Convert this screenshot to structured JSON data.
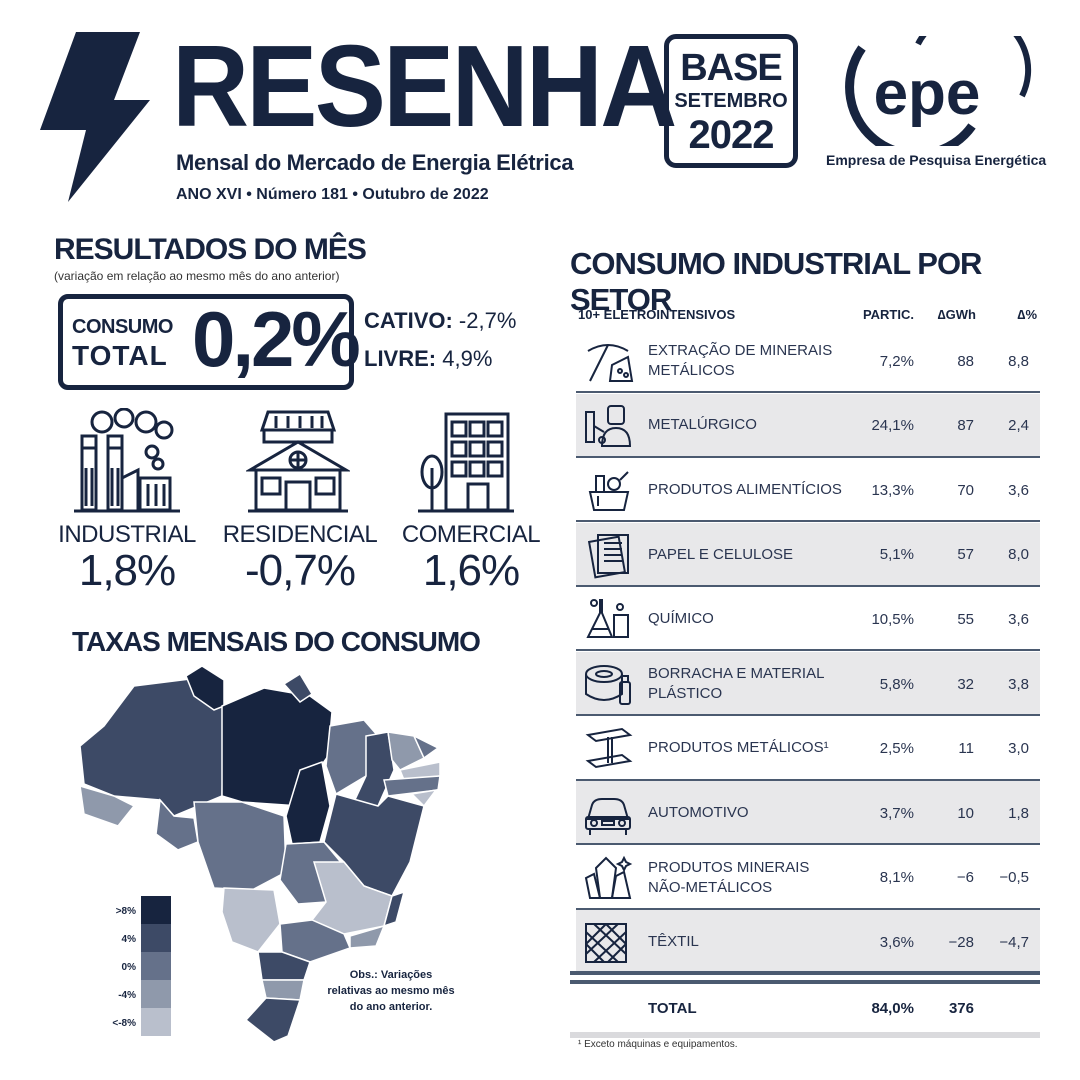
{
  "header": {
    "brand": "RESENHA",
    "subtitle": "Mensal do Mercado de Energia Elétrica",
    "issue": "ANO XVI • Número 181 • Outubro de 2022",
    "base_box": {
      "line1": "BASE",
      "line2": "SETEMBRO",
      "line3": "2022"
    },
    "epe_logo_text": "epe",
    "epe_caption": "Empresa de Pesquisa Energética"
  },
  "results": {
    "title": "RESULTADOS DO MÊS",
    "note": "(variação em relação ao mesmo mês do ano anterior)",
    "consumo_label_1": "CONSUMO",
    "consumo_label_2": "TOTAL",
    "consumo_value": "0,2%",
    "cativo_label": "CATIVO:",
    "cativo_value": " -2,7%",
    "livre_label": "LIVRE:",
    "livre_value": " 4,9%",
    "sectors": [
      {
        "name": "INDUSTRIAL",
        "value": "1,8%",
        "icon": "factory-icon"
      },
      {
        "name": "RESIDENCIAL",
        "value": "-0,7%",
        "icon": "house-icon"
      },
      {
        "name": "COMERCIAL",
        "value": "1,6%",
        "icon": "building-icon"
      }
    ]
  },
  "map": {
    "title": "TAXAS MENSAIS DO CONSUMO",
    "legend": [
      {
        "label": ">8%",
        "color": "#17243f"
      },
      {
        "label": "4%",
        "color": "#3d4a66"
      },
      {
        "label": "0%",
        "color": "#65718a"
      },
      {
        "label": "-4%",
        "color": "#8f99ab"
      },
      {
        "label": "<-8%",
        "color": "#b9bfcc"
      }
    ],
    "obs": "Obs.: Variações relativas ao mesmo mês do ano anterior."
  },
  "table": {
    "title": "CONSUMO INDUSTRIAL POR SETOR",
    "headers": {
      "sector": "10+ ELETROINTENSIVOS",
      "partic": "PARTIC.",
      "gwh": "∆GWh",
      "pct": "∆%"
    },
    "rows": [
      {
        "name": "EXTRAÇÃO DE MINERAIS METÁLICOS",
        "partic": "7,2%",
        "gwh": "88",
        "pct": "8,8",
        "icon": "pickaxe-icon"
      },
      {
        "name": "METALÚRGICO",
        "partic": "24,1%",
        "gwh": "87",
        "pct": "2,4",
        "icon": "welder-icon"
      },
      {
        "name": "PRODUTOS ALIMENTÍCIOS",
        "partic": "13,3%",
        "gwh": "70",
        "pct": "3,6",
        "icon": "grocery-icon"
      },
      {
        "name": "PAPEL E CELULOSE",
        "partic": "5,1%",
        "gwh": "57",
        "pct": "8,0",
        "icon": "paper-icon"
      },
      {
        "name": "QUÍMICO",
        "partic": "10,5%",
        "gwh": "55",
        "pct": "3,6",
        "icon": "flask-icon"
      },
      {
        "name": "BORRACHA E MATERIAL PLÁSTICO",
        "partic": "5,8%",
        "gwh": "32",
        "pct": "3,8",
        "icon": "tire-bottle-icon"
      },
      {
        "name": "PRODUTOS METÁLICOS¹",
        "partic": "2,5%",
        "gwh": "11",
        "pct": "3,0",
        "icon": "steel-beam-icon"
      },
      {
        "name": "AUTOMOTIVO",
        "partic": "3,7%",
        "gwh": "10",
        "pct": "1,8",
        "icon": "car-icon"
      },
      {
        "name": "PRODUTOS MINERAIS NÃO-METÁLICOS",
        "partic": "8,1%",
        "gwh": "−6",
        "pct": "−0,5",
        "icon": "crystal-icon"
      },
      {
        "name": "TÊXTIL",
        "partic": "3,6%",
        "gwh": "−28",
        "pct": "−4,7",
        "icon": "fabric-icon"
      }
    ],
    "total": {
      "label": "TOTAL",
      "partic": "84,0%",
      "gwh": "376"
    },
    "footnote": "¹ Exceto máquinas e equipamentos."
  }
}
